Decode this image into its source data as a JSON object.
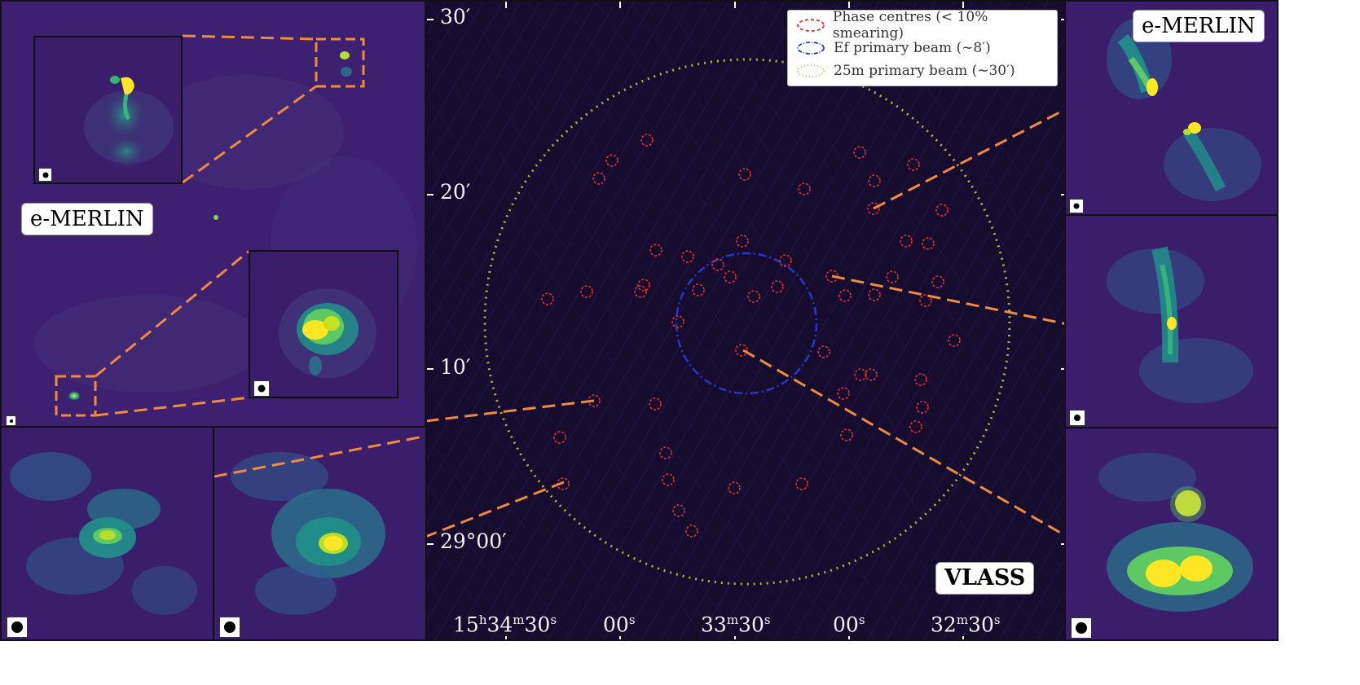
{
  "left_panel": {
    "label": "e-MERLIN"
  },
  "right_top_panel": {
    "label": "e-MERLIN"
  },
  "central_panel": {
    "label": "VLASS",
    "y_ticks": [
      "30′",
      "20′",
      "10′",
      "29°00′"
    ],
    "x_ticks": [
      "15h34m30s",
      "00s",
      "33m30s",
      "00s",
      "32m30s"
    ],
    "legend": {
      "items": [
        {
          "label": "Phase centres (< 10% smearing)",
          "color": "#e03030",
          "style": "dashed"
        },
        {
          "label": "Ef primary beam (∼8′)",
          "color": "#2a36c9",
          "style": "dashdot"
        },
        {
          "label": "25m primary beam (∼30′)",
          "color": "#b5b530",
          "style": "dotted"
        }
      ]
    }
  },
  "colors": {
    "connector": "#f08a3c",
    "phase_centre": "#e03030",
    "ef_beam": "#2a36c9",
    "m25_beam": "#b5b530",
    "map_background": "#150c2e",
    "image_background": "#3b1e6b"
  }
}
